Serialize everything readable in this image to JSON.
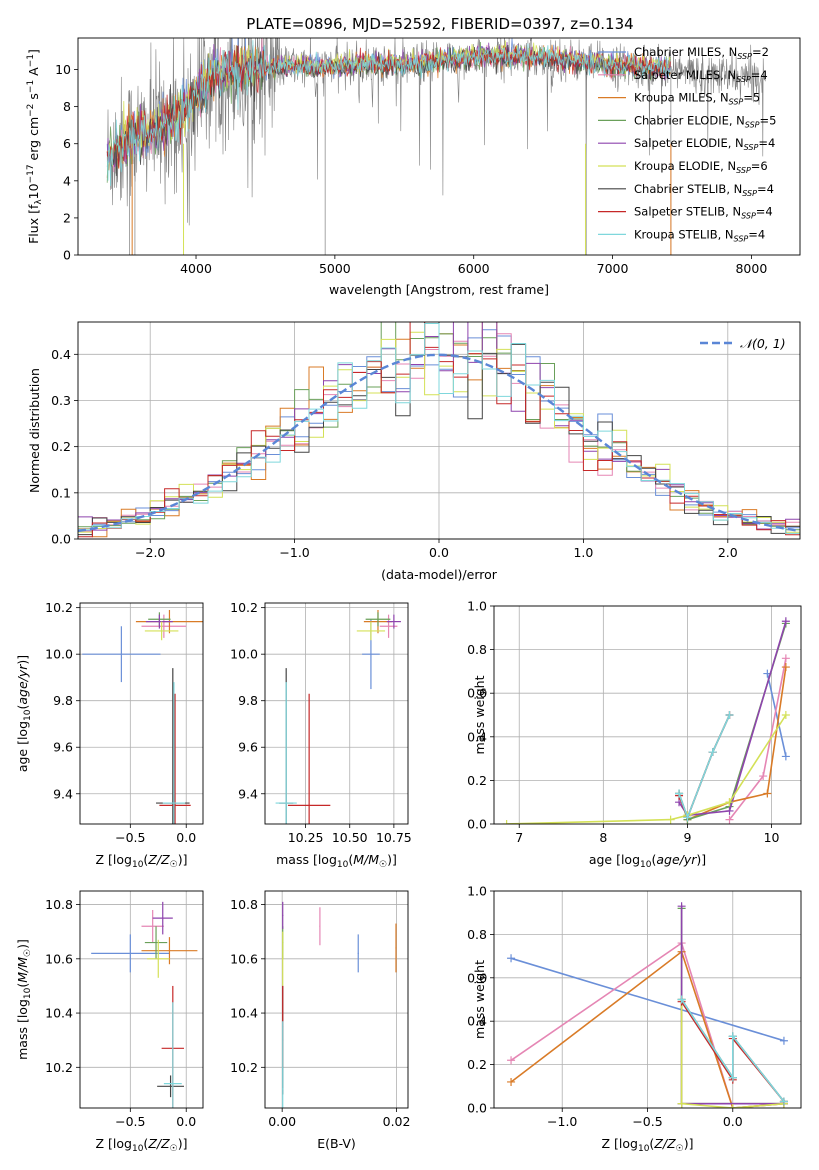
{
  "figure": {
    "title": "PLATE=0896, MJD=52592, FIBERID=0397, z=0.134"
  },
  "colors": {
    "chabrier_miles": "#6a8fd8",
    "salpeter_miles": "#e586b4",
    "kroupa_miles": "#d97b27",
    "chabrier_elodie": "#6aa05a",
    "salpeter_elodie": "#8e44ad",
    "kroupa_elodie": "#d4e157",
    "chabrier_stelib": "#444444",
    "salpeter_stelib": "#c62828",
    "kroupa_stelib": "#7fd7dc",
    "data_spectrum": "#808080",
    "normal_curve": "#5a86d6",
    "grid": "#b0b0b0"
  },
  "chart_data": [
    {
      "id": "spectrum",
      "type": "line",
      "xlabel": "wavelength [Angstrom, rest frame]",
      "ylabel": "Flux [f_λ10^-17 erg cm^-2 s^-1 A^-1]",
      "xlim": [
        3150,
        8350
      ],
      "ylim": [
        0,
        11.7
      ],
      "xticks": [
        4000,
        5000,
        6000,
        7000,
        8000
      ],
      "yticks": [
        0,
        2,
        4,
        6,
        8,
        10
      ],
      "grid": false,
      "legend_position": "top-right",
      "continuum": {
        "x": [
          3360,
          3500,
          3650,
          3800,
          3950,
          4100,
          4300,
          4500,
          4700,
          4900,
          5100,
          5300,
          5500,
          5700,
          5900,
          6100,
          6300,
          6500,
          6700,
          6900,
          7100,
          7300,
          7500,
          7700,
          7900,
          8100
        ],
        "y": [
          5.3,
          6.2,
          6.6,
          7.2,
          8.0,
          9.6,
          10.0,
          10.1,
          10.2,
          10.1,
          10.2,
          10.3,
          10.2,
          10.4,
          10.6,
          10.7,
          10.7,
          10.7,
          10.5,
          10.3,
          10.2,
          10.1,
          9.9,
          9.7,
          9.6,
          9.5
        ]
      },
      "series": [
        {
          "name": "Chabrier MILES, N_SSP=2",
          "color_key": "chabrier_miles",
          "offset": 0.1
        },
        {
          "name": "Salpeter MILES, N_SSP=4",
          "color_key": "salpeter_miles",
          "offset": 0.05
        },
        {
          "name": "Kroupa MILES, N_SSP=5",
          "color_key": "kroupa_miles",
          "offset": 0.0
        },
        {
          "name": "Chabrier ELODIE, N_SSP=5",
          "color_key": "chabrier_elodie",
          "offset": -0.05
        },
        {
          "name": "Salpeter ELODIE, N_SSP=4",
          "color_key": "salpeter_elodie",
          "offset": 0.08
        },
        {
          "name": "Kroupa ELODIE, N_SSP=6",
          "color_key": "kroupa_elodie",
          "offset": 0.15
        },
        {
          "name": "Chabrier STELIB, N_SSP=4",
          "color_key": "chabrier_stelib",
          "offset": -0.1
        },
        {
          "name": "Salpeter STELIB, N_SSP=4",
          "color_key": "salpeter_stelib",
          "offset": -0.02
        },
        {
          "name": "Kroupa STELIB, N_SSP=4",
          "color_key": "kroupa_stelib",
          "offset": 0.03
        }
      ]
    },
    {
      "id": "residuals",
      "type": "line",
      "xlabel": "(data-model)/error",
      "ylabel": "Normed distribution",
      "xlim": [
        -2.5,
        2.5
      ],
      "ylim": [
        0,
        0.47
      ],
      "xticks": [
        -2,
        -1,
        0,
        1,
        2
      ],
      "yticks": [
        0.0,
        0.1,
        0.2,
        0.3,
        0.4
      ],
      "grid": true,
      "legend_position": "top-right",
      "normal_label": "𝒩(0, 1)",
      "bin_width": 0.1,
      "series_color_keys": [
        "chabrier_miles",
        "salpeter_miles",
        "kroupa_miles",
        "chabrier_elodie",
        "salpeter_elodie",
        "kroupa_elodie",
        "chabrier_stelib",
        "salpeter_stelib",
        "kroupa_stelib"
      ]
    },
    {
      "id": "age_vs_Z",
      "type": "scatter",
      "xlabel": "Z [log₁₀(Z/Z☉)]",
      "ylabel": "age  [log₁₀(age/yr)]",
      "xlim": [
        -0.95,
        0.15
      ],
      "ylim": [
        9.27,
        10.22
      ],
      "xticks": [
        -0.5,
        0.0
      ],
      "yticks": [
        9.4,
        9.6,
        9.8,
        10.0,
        10.2
      ],
      "grid": true,
      "points": [
        {
          "c": "chabrier_miles",
          "x": -0.58,
          "xe": 0.35,
          "y": 10.0,
          "ye": 0.12
        },
        {
          "c": "salpeter_miles",
          "x": -0.2,
          "xe": 0.2,
          "y": 10.12,
          "ye": 0.05
        },
        {
          "c": "kroupa_miles",
          "x": -0.15,
          "xe": 0.3,
          "y": 10.14,
          "ye": 0.05
        },
        {
          "c": "chabrier_elodie",
          "x": -0.24,
          "xe": 0.1,
          "y": 10.15,
          "ye": 0.03
        },
        {
          "c": "salpeter_elodie",
          "x": -0.24,
          "xe": 0.12,
          "y": 10.14,
          "ye": 0.03
        },
        {
          "c": "kroupa_elodie",
          "x": -0.22,
          "xe": 0.15,
          "y": 10.1,
          "ye": 0.04
        },
        {
          "c": "chabrier_stelib",
          "x": -0.12,
          "xe": 0.15,
          "y": 9.36,
          "ye": 0.58
        },
        {
          "c": "salpeter_stelib",
          "x": -0.1,
          "xe": 0.14,
          "y": 9.35,
          "ye": 0.48
        },
        {
          "c": "kroupa_stelib",
          "x": -0.11,
          "xe": 0.1,
          "y": 9.36,
          "ye": 0.52
        }
      ]
    },
    {
      "id": "age_vs_mass",
      "type": "scatter",
      "xlabel": "mass [log₁₀(M/M☉)]",
      "ylabel": "",
      "xlim": [
        10.02,
        10.83
      ],
      "ylim": [
        9.27,
        10.22
      ],
      "xticks": [
        10.25,
        10.5,
        10.75
      ],
      "tick_labels": [
        "10.25",
        "10.50",
        "10.75"
      ],
      "yticks": [
        9.4,
        9.6,
        9.8,
        10.0,
        10.2
      ],
      "grid": true,
      "points": [
        {
          "c": "chabrier_miles",
          "x": 10.62,
          "xe": 0.05,
          "y": 10.0,
          "ye": 0.15
        },
        {
          "c": "salpeter_miles",
          "x": 10.72,
          "xe": 0.05,
          "y": 10.12,
          "ye": 0.05
        },
        {
          "c": "kroupa_miles",
          "x": 10.66,
          "xe": 0.08,
          "y": 10.14,
          "ye": 0.05
        },
        {
          "c": "chabrier_elodie",
          "x": 10.66,
          "xe": 0.07,
          "y": 10.15,
          "ye": 0.03
        },
        {
          "c": "salpeter_elodie",
          "x": 10.75,
          "xe": 0.04,
          "y": 10.14,
          "ye": 0.03
        },
        {
          "c": "kroupa_elodie",
          "x": 10.62,
          "xe": 0.08,
          "y": 10.1,
          "ye": 0.04
        },
        {
          "c": "chabrier_stelib",
          "x": 10.14,
          "xe": 0.04,
          "y": 9.36,
          "ye": 0.58
        },
        {
          "c": "salpeter_stelib",
          "x": 10.27,
          "xe": 0.12,
          "y": 9.35,
          "ye": 0.48
        },
        {
          "c": "kroupa_stelib",
          "x": 10.14,
          "xe": 0.06,
          "y": 9.36,
          "ye": 0.52
        }
      ]
    },
    {
      "id": "weight_vs_age",
      "type": "line",
      "xlabel": "age  [log₁₀(age/yr)]",
      "ylabel": "mass weight",
      "xlim": [
        6.7,
        10.35
      ],
      "ylim": [
        0,
        1.0
      ],
      "xticks": [
        7,
        8,
        9,
        10
      ],
      "yticks": [
        0.0,
        0.2,
        0.4,
        0.6,
        0.8,
        1.0
      ],
      "grid": true,
      "series": [
        {
          "c": "chabrier_miles",
          "x": [
            9.95,
            10.17
          ],
          "y": [
            0.69,
            0.31
          ]
        },
        {
          "c": "salpeter_miles",
          "x": [
            9.5,
            9.9,
            10.17
          ],
          "y": [
            0.02,
            0.22,
            0.76
          ]
        },
        {
          "c": "kroupa_miles",
          "x": [
            9.0,
            9.5,
            9.95,
            10.17
          ],
          "y": [
            0.02,
            0.1,
            0.14,
            0.72
          ]
        },
        {
          "c": "chabrier_elodie",
          "x": [
            8.9,
            9.0,
            9.5,
            10.17
          ],
          "y": [
            0.14,
            0.02,
            0.08,
            0.92
          ]
        },
        {
          "c": "salpeter_elodie",
          "x": [
            8.9,
            9.0,
            9.5,
            10.17
          ],
          "y": [
            0.1,
            0.04,
            0.06,
            0.93
          ]
        },
        {
          "c": "kroupa_elodie",
          "x": [
            6.85,
            8.8,
            9.0,
            9.5,
            10.17
          ],
          "y": [
            0.0,
            0.02,
            0.04,
            0.1,
            0.5
          ]
        },
        {
          "c": "chabrier_stelib",
          "x": [
            8.9,
            9.0,
            9.3,
            9.5
          ],
          "y": [
            0.14,
            0.03,
            0.33,
            0.5
          ]
        },
        {
          "c": "salpeter_stelib",
          "x": [
            8.9,
            9.0,
            9.3,
            9.5
          ],
          "y": [
            0.13,
            0.03,
            0.33,
            0.5
          ]
        },
        {
          "c": "kroupa_stelib",
          "x": [
            8.9,
            9.0,
            9.3,
            9.5
          ],
          "y": [
            0.14,
            0.03,
            0.33,
            0.5
          ]
        }
      ]
    },
    {
      "id": "mass_vs_Z",
      "type": "scatter",
      "xlabel": "Z [log₁₀(Z/Z☉)]",
      "ylabel": "mass [log₁₀(M/M☉)]",
      "xlim": [
        -0.95,
        0.15
      ],
      "ylim": [
        10.05,
        10.85
      ],
      "xticks": [
        -0.5,
        0.0
      ],
      "yticks": [
        10.2,
        10.4,
        10.6,
        10.8
      ],
      "grid": true,
      "points": [
        {
          "c": "chabrier_miles",
          "x": -0.5,
          "xe": 0.35,
          "y": 10.62,
          "ye": 0.07
        },
        {
          "c": "salpeter_miles",
          "x": -0.3,
          "xe": 0.1,
          "y": 10.72,
          "ye": 0.06
        },
        {
          "c": "kroupa_miles",
          "x": -0.15,
          "xe": 0.25,
          "y": 10.63,
          "ye": 0.05
        },
        {
          "c": "chabrier_elodie",
          "x": -0.27,
          "xe": 0.1,
          "y": 10.66,
          "ye": 0.06
        },
        {
          "c": "salpeter_elodie",
          "x": -0.21,
          "xe": 0.09,
          "y": 10.75,
          "ye": 0.06
        },
        {
          "c": "kroupa_elodie",
          "x": -0.25,
          "xe": 0.1,
          "y": 10.6,
          "ye": 0.07
        },
        {
          "c": "chabrier_stelib",
          "x": -0.14,
          "xe": 0.12,
          "y": 10.13,
          "ye": 0.04
        },
        {
          "c": "salpeter_stelib",
          "x": -0.12,
          "xe": 0.1,
          "y": 10.27,
          "ye": 0.23
        },
        {
          "c": "kroupa_stelib",
          "x": -0.12,
          "xe": 0.08,
          "y": 10.14,
          "ye": 0.3
        }
      ]
    },
    {
      "id": "mass_vs_ebv",
      "type": "scatter",
      "xlabel": "E(B-V)",
      "ylabel": "",
      "xlim": [
        -0.003,
        0.022
      ],
      "ylim": [
        10.05,
        10.85
      ],
      "xticks": [
        0.0,
        0.02
      ],
      "tick_labels": [
        "0.00",
        "0.02"
      ],
      "yticks": [
        10.2,
        10.4,
        10.6,
        10.8
      ],
      "grid": true,
      "points": [
        {
          "c": "chabrier_miles",
          "x": 0.0133,
          "xe": 0.0001,
          "y": 10.62,
          "ye": 0.07
        },
        {
          "c": "salpeter_miles",
          "x": 0.0066,
          "xe": 0.0001,
          "y": 10.72,
          "ye": 0.07
        },
        {
          "c": "kroupa_miles",
          "x": 0.0199,
          "xe": 0.0001,
          "y": 10.64,
          "ye": 0.09
        },
        {
          "c": "chabrier_elodie",
          "x": 0.0001,
          "xe": 0.0001,
          "y": 10.66,
          "ye": 0.06
        },
        {
          "c": "salpeter_elodie",
          "x": 0.0001,
          "xe": 0.0001,
          "y": 10.76,
          "ye": 0.05
        },
        {
          "c": "kroupa_elodie",
          "x": 0.0001,
          "xe": 0.0001,
          "y": 10.6,
          "ye": 0.1
        },
        {
          "c": "chabrier_stelib",
          "x": 0.0001,
          "xe": 0.0001,
          "y": 10.3,
          "ye": 0.2
        },
        {
          "c": "salpeter_stelib",
          "x": 0.0001,
          "xe": 0.0001,
          "y": 10.35,
          "ye": 0.15
        },
        {
          "c": "kroupa_stelib",
          "x": 0.0001,
          "xe": 0.0001,
          "y": 10.12,
          "ye": 0.25
        }
      ]
    },
    {
      "id": "weight_vs_Z",
      "type": "line",
      "xlabel": "Z [log₁₀(Z/Z☉)]",
      "ylabel": "mass weight",
      "xlim": [
        -1.4,
        0.4
      ],
      "ylim": [
        0,
        1.0
      ],
      "xticks": [
        -1.0,
        -0.5,
        0.0
      ],
      "yticks": [
        0.0,
        0.2,
        0.4,
        0.6,
        0.8,
        1.0
      ],
      "grid": true,
      "series": [
        {
          "c": "chabrier_miles",
          "x": [
            -1.3,
            0.3
          ],
          "y": [
            0.69,
            0.31
          ]
        },
        {
          "c": "salpeter_miles",
          "x": [
            -1.3,
            -0.3,
            0.0,
            0.3
          ],
          "y": [
            0.22,
            0.76,
            0.0,
            0.02
          ]
        },
        {
          "c": "kroupa_miles",
          "x": [
            -1.3,
            -0.3,
            0.0,
            0.3
          ],
          "y": [
            0.12,
            0.72,
            0.0,
            0.02
          ]
        },
        {
          "c": "chabrier_elodie",
          "x": [
            -0.3,
            -0.3,
            0.3
          ],
          "y": [
            0.92,
            0.02,
            0.02
          ]
        },
        {
          "c": "salpeter_elodie",
          "x": [
            -0.3,
            -0.3,
            0.3
          ],
          "y": [
            0.93,
            0.02,
            0.02
          ]
        },
        {
          "c": "kroupa_elodie",
          "x": [
            -0.3,
            -0.3,
            0.0,
            0.3
          ],
          "y": [
            0.5,
            0.02,
            0.0,
            0.02
          ]
        },
        {
          "c": "chabrier_stelib",
          "x": [
            -0.3,
            0.0,
            0.0,
            0.3
          ],
          "y": [
            0.5,
            0.14,
            0.33,
            0.03
          ]
        },
        {
          "c": "salpeter_stelib",
          "x": [
            -0.3,
            0.0,
            0.0,
            0.3
          ],
          "y": [
            0.49,
            0.13,
            0.32,
            0.03
          ]
        },
        {
          "c": "kroupa_stelib",
          "x": [
            -0.3,
            0.0,
            0.0,
            0.3
          ],
          "y": [
            0.5,
            0.14,
            0.33,
            0.03
          ]
        }
      ]
    }
  ]
}
